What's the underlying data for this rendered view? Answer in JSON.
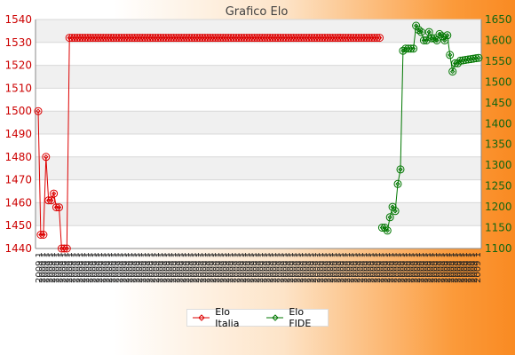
{
  "chart_data": {
    "type": "line",
    "title": "Grafico Elo",
    "x_tick_label": "2009 1",
    "x_tick_count": 132,
    "y_left": {
      "ylim": [
        1440,
        1540
      ],
      "ticks": [
        1440,
        1450,
        1460,
        1470,
        1480,
        1490,
        1500,
        1510,
        1520,
        1530,
        1540
      ]
    },
    "y_right": {
      "ylim": [
        1100,
        1650
      ],
      "ticks": [
        1100,
        1150,
        1200,
        1250,
        1300,
        1350,
        1400,
        1450,
        1500,
        1550,
        1600,
        1650
      ]
    },
    "grid": true,
    "legend_placement": "bottom-center",
    "series": [
      {
        "name": "Elo Italia",
        "axis": "left",
        "color": "#dd0000",
        "marker": "diamond",
        "x": [
          0,
          1,
          2,
          3,
          4,
          5,
          6,
          7,
          8,
          9,
          10,
          11,
          12,
          13,
          14,
          15,
          16,
          17,
          18,
          19,
          20,
          21,
          22,
          23,
          24,
          25,
          26,
          27,
          28,
          29,
          30,
          31,
          32,
          33,
          34,
          35,
          36,
          37,
          38,
          39,
          40,
          41,
          42,
          43,
          44,
          45,
          46,
          47,
          48,
          49,
          50,
          51,
          52,
          53,
          54,
          55,
          56,
          57,
          58,
          59,
          60,
          61,
          62,
          63,
          64,
          65,
          66,
          67,
          68,
          69,
          70,
          71,
          72,
          73,
          74,
          75,
          76,
          77,
          78,
          79,
          80,
          81,
          82,
          83,
          84,
          85,
          86,
          87,
          88,
          89,
          90,
          91,
          92,
          93,
          94,
          95,
          96,
          97,
          98,
          99,
          100,
          101,
          102,
          103,
          104,
          105,
          106,
          107,
          108,
          109,
          110,
          111,
          112,
          113,
          114,
          115,
          116,
          117,
          118,
          119,
          120,
          121,
          122,
          123,
          124,
          125,
          126,
          127,
          128,
          129,
          130,
          131
        ],
        "values": [
          1500,
          1446,
          1446,
          1480,
          1461,
          1461,
          1464,
          1458,
          1458,
          1440,
          1440,
          1440,
          1532,
          1532,
          1532,
          1532,
          1532,
          1532,
          1532,
          1532,
          1532,
          1532,
          1532,
          1532,
          1532,
          1532,
          1532,
          1532,
          1532,
          1532,
          1532,
          1532,
          1532,
          1532,
          1532,
          1532,
          1532,
          1532,
          1532,
          1532,
          1532,
          1532,
          1532,
          1532,
          1532,
          1532,
          1532,
          1532,
          1532,
          1532,
          1532,
          1532,
          1532,
          1532,
          1532,
          1532,
          1532,
          1532,
          1532,
          1532,
          1532,
          1532,
          1532,
          1532,
          1532,
          1532,
          1532,
          1532,
          1532,
          1532,
          1532,
          1532,
          1532,
          1532,
          1532,
          1532,
          1532,
          1532,
          1532,
          1532,
          1532,
          1532,
          1532,
          1532,
          1532,
          1532,
          1532,
          1532,
          1532,
          1532,
          1532,
          1532,
          1532,
          1532,
          1532,
          1532,
          1532,
          1532,
          1532,
          1532,
          1532,
          1532,
          1532,
          1532,
          1532,
          1532,
          1532,
          1532,
          1532,
          1532,
          1532,
          1532,
          1532,
          1532,
          1532,
          1532,
          1532,
          1532,
          1532,
          1532,
          1532,
          1532,
          1532,
          1532,
          1532,
          1532,
          1532,
          1532,
          1532,
          1532,
          1532,
          1532
        ]
      },
      {
        "name": "Elo FIDE",
        "axis": "right",
        "color": "#007700",
        "marker": "diamond",
        "x": [
          132,
          133,
          134,
          135,
          136,
          137,
          138,
          139,
          140,
          141,
          142,
          143,
          144,
          145,
          146,
          147,
          148,
          149,
          150,
          151,
          152,
          153,
          154,
          155,
          156,
          157,
          158,
          159,
          160,
          161,
          162,
          163,
          164,
          165,
          166,
          167,
          168,
          169
        ],
        "values": [
          1150,
          1150,
          1143,
          1175,
          1200,
          1190,
          1255,
          1290,
          1575,
          1580,
          1580,
          1580,
          1580,
          1635,
          1625,
          1620,
          1600,
          1600,
          1620,
          1605,
          1605,
          1600,
          1615,
          1610,
          1600,
          1612,
          1565,
          1525,
          1545,
          1545,
          1551,
          1552,
          1553,
          1554,
          1555,
          1556,
          1557,
          1558
        ]
      }
    ]
  }
}
